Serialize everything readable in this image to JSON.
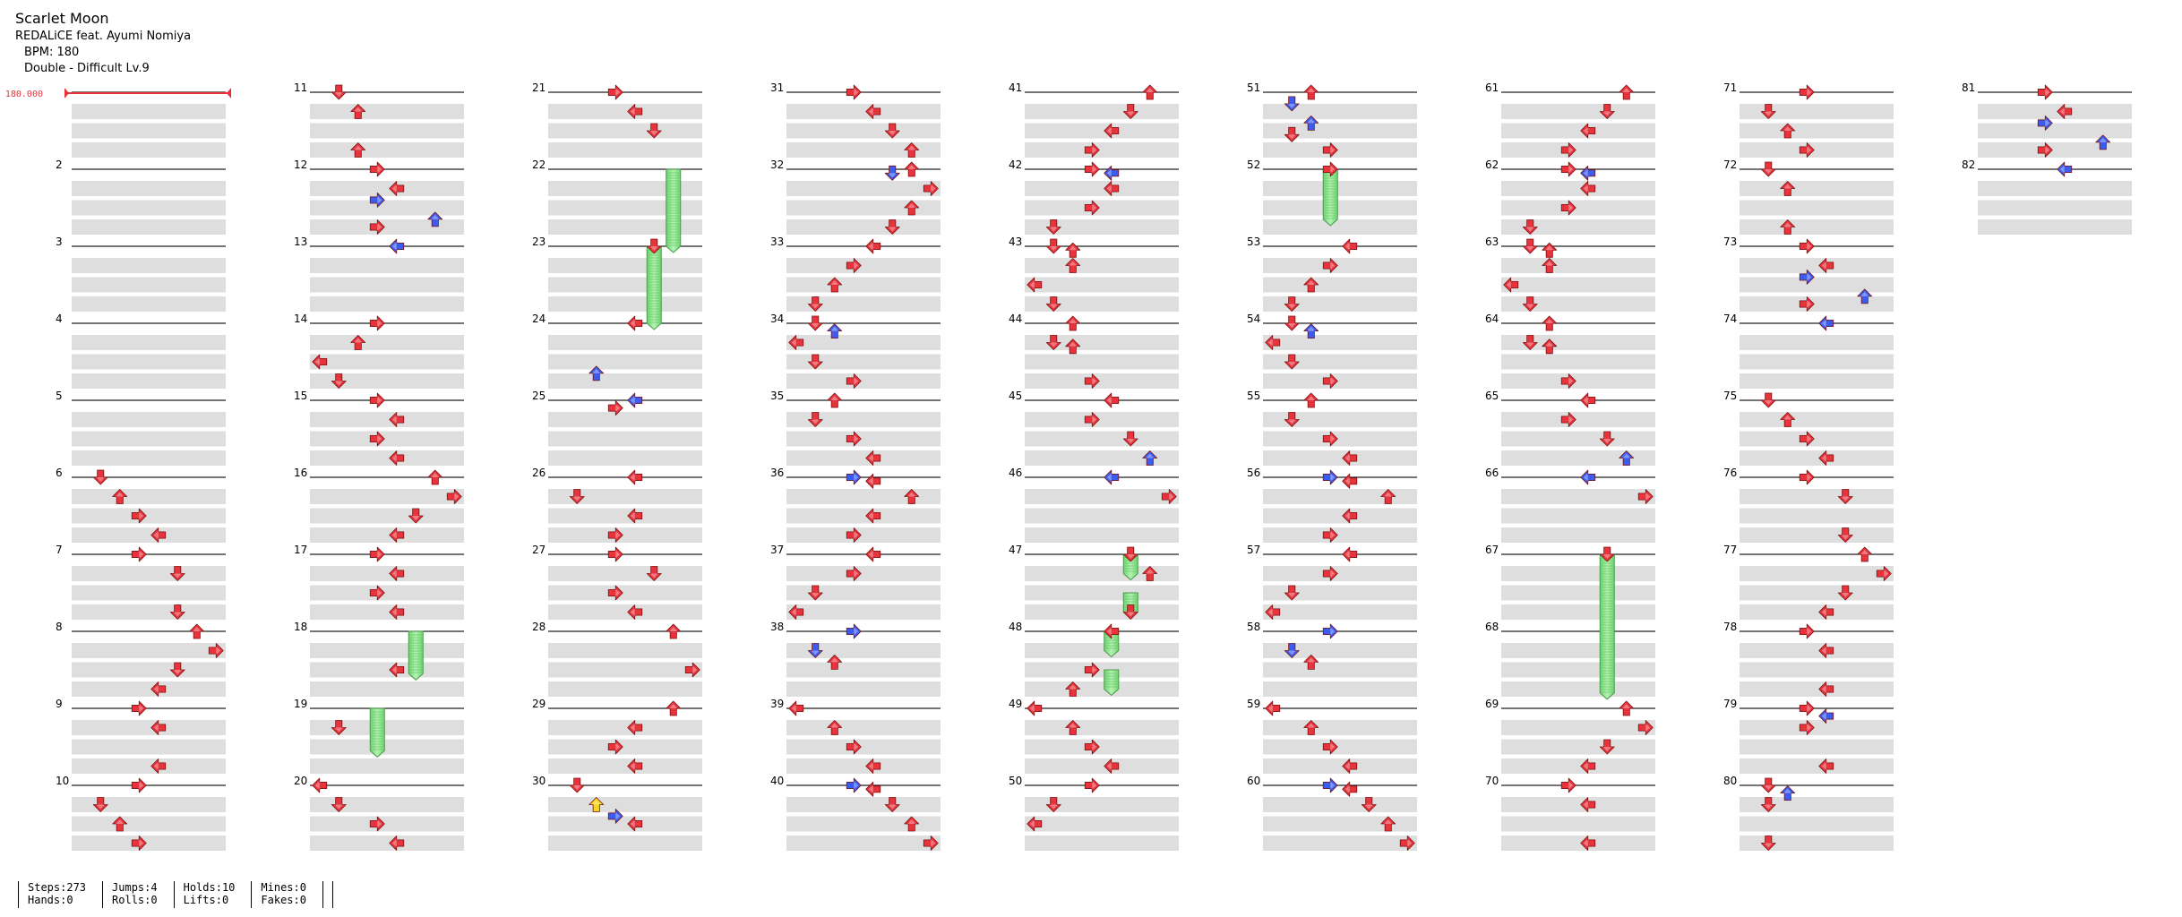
{
  "header": {
    "title": "Scarlet Moon",
    "artist": "REDALiCE feat. Ayumi Nomiya",
    "bpm_line": "BPM: 180",
    "difficulty_line": "Double - Difficult  Lv.9"
  },
  "bpm_marker": "180.000",
  "measure_numbers": [
    "",
    "2",
    "3",
    "4",
    "5",
    "6",
    "7",
    "8",
    "9",
    "10",
    "11",
    "12",
    "13",
    "14",
    "15",
    "16",
    "17",
    "18",
    "19",
    "20",
    "21",
    "22",
    "23",
    "24",
    "25",
    "26",
    "27",
    "28",
    "29",
    "30",
    "31",
    "32",
    "33",
    "34",
    "35",
    "36",
    "37",
    "38",
    "39",
    "40",
    "41",
    "42",
    "43",
    "44",
    "45",
    "46",
    "47",
    "48",
    "49",
    "50",
    "51",
    "52",
    "53",
    "54",
    "55",
    "56",
    "57",
    "58",
    "59",
    "60",
    "61",
    "62",
    "63",
    "64",
    "65",
    "66",
    "67",
    "68",
    "69",
    "70",
    "71",
    "72",
    "73",
    "74",
    "75",
    "76",
    "77",
    "78",
    "79",
    "80",
    "81",
    "82"
  ],
  "colors": {
    "arrow_red": "#e8323c",
    "arrow_blue": "#3a5cf0",
    "arrow_yellow": "#f5d623",
    "hold_green": "#8ee68e",
    "band_gray": "#dedede"
  },
  "notes": [
    [
      6,
      0.0,
      1,
      "r"
    ],
    [
      6,
      0.25,
      2,
      "r"
    ],
    [
      6,
      0.5,
      3,
      "r"
    ],
    [
      6,
      0.75,
      4,
      "r"
    ],
    [
      7,
      0.0,
      3,
      "r"
    ],
    [
      7,
      0.25,
      5,
      "r"
    ],
    [
      7,
      0.75,
      5,
      "r"
    ],
    [
      8,
      0.0,
      6,
      "r"
    ],
    [
      8,
      0.25,
      7,
      "r"
    ],
    [
      8,
      0.5,
      5,
      "r"
    ],
    [
      8,
      0.75,
      4,
      "r"
    ],
    [
      9,
      0.0,
      3,
      "r"
    ],
    [
      9,
      0.25,
      4,
      "r"
    ],
    [
      9,
      0.75,
      4,
      "r"
    ],
    [
      10,
      0.0,
      3,
      "r"
    ],
    [
      10,
      0.25,
      1,
      "r"
    ],
    [
      10,
      0.5,
      2,
      "r"
    ],
    [
      10,
      0.75,
      3,
      "r"
    ],
    [
      11,
      0.0,
      1,
      "r"
    ],
    [
      11,
      0.25,
      2,
      "r"
    ],
    [
      11,
      0.75,
      2,
      "r"
    ],
    [
      12,
      0.0,
      3,
      "r"
    ],
    [
      12,
      0.25,
      4,
      "r"
    ],
    [
      12,
      0.4,
      3,
      "b"
    ],
    [
      12,
      0.65,
      6,
      "b"
    ],
    [
      12,
      0.75,
      3,
      "r"
    ],
    [
      13,
      0.0,
      4,
      "b"
    ],
    [
      14,
      0.0,
      3,
      "r"
    ],
    [
      14,
      0.25,
      2,
      "r"
    ],
    [
      14,
      0.5,
      0,
      "r"
    ],
    [
      14,
      0.75,
      1,
      "r"
    ],
    [
      15,
      0.0,
      3,
      "r"
    ],
    [
      15,
      0.25,
      4,
      "r"
    ],
    [
      15,
      0.5,
      3,
      "r"
    ],
    [
      15,
      0.75,
      4,
      "r"
    ],
    [
      16,
      0.0,
      6,
      "r"
    ],
    [
      16,
      0.25,
      7,
      "r"
    ],
    [
      16,
      0.5,
      5,
      "r"
    ],
    [
      16,
      0.75,
      4,
      "r"
    ],
    [
      17,
      0.0,
      3,
      "r"
    ],
    [
      17,
      0.25,
      4,
      "r"
    ],
    [
      17,
      0.5,
      3,
      "r"
    ],
    [
      17,
      0.75,
      4,
      "r"
    ],
    [
      18,
      0.5,
      4,
      "r"
    ],
    [
      19,
      0.25,
      1,
      "r"
    ],
    [
      20,
      0.0,
      0,
      "r"
    ],
    [
      20,
      0.25,
      1,
      "r"
    ],
    [
      20,
      0.5,
      3,
      "r"
    ],
    [
      20,
      0.75,
      4,
      "r"
    ],
    [
      21,
      0.0,
      3,
      "r"
    ],
    [
      21,
      0.25,
      4,
      "r"
    ],
    [
      21,
      0.5,
      5,
      "r"
    ],
    [
      23,
      0.0,
      5,
      "r"
    ],
    [
      24,
      0.0,
      4,
      "r"
    ],
    [
      24,
      0.65,
      2,
      "b"
    ],
    [
      25,
      0.0,
      4,
      "b"
    ],
    [
      25,
      0.1,
      3,
      "r"
    ],
    [
      26,
      0.0,
      4,
      "r"
    ],
    [
      26,
      0.25,
      1,
      "r"
    ],
    [
      26,
      0.5,
      4,
      "r"
    ],
    [
      26,
      0.75,
      3,
      "r"
    ],
    [
      27,
      0.0,
      3,
      "r"
    ],
    [
      27,
      0.25,
      5,
      "r"
    ],
    [
      27,
      0.5,
      3,
      "r"
    ],
    [
      27,
      0.75,
      4,
      "r"
    ],
    [
      28,
      0.0,
      6,
      "r"
    ],
    [
      28,
      0.5,
      7,
      "r"
    ],
    [
      29,
      0.0,
      6,
      "r"
    ],
    [
      29,
      0.25,
      4,
      "r"
    ],
    [
      29,
      0.5,
      3,
      "r"
    ],
    [
      29,
      0.75,
      4,
      "r"
    ],
    [
      30,
      0.0,
      1,
      "r"
    ],
    [
      30,
      0.25,
      2,
      "y"
    ],
    [
      30,
      0.4,
      3,
      "b"
    ],
    [
      30,
      0.5,
      4,
      "r"
    ],
    [
      31,
      0.0,
      3,
      "r"
    ],
    [
      31,
      0.25,
      4,
      "r"
    ],
    [
      31,
      0.5,
      5,
      "r"
    ],
    [
      31,
      0.75,
      6,
      "r"
    ],
    [
      32,
      0.0,
      6,
      "r"
    ],
    [
      32,
      0.05,
      5,
      "b"
    ],
    [
      32,
      0.25,
      7,
      "r"
    ],
    [
      32,
      0.5,
      6,
      "r"
    ],
    [
      32,
      0.75,
      5,
      "r"
    ],
    [
      33,
      0.0,
      4,
      "r"
    ],
    [
      33,
      0.25,
      3,
      "r"
    ],
    [
      33,
      0.5,
      2,
      "r"
    ],
    [
      33,
      0.75,
      1,
      "r"
    ],
    [
      34,
      0.0,
      1,
      "r"
    ],
    [
      34,
      0.1,
      2,
      "b"
    ],
    [
      34,
      0.25,
      0,
      "r"
    ],
    [
      34,
      0.5,
      1,
      "r"
    ],
    [
      34,
      0.75,
      3,
      "r"
    ],
    [
      35,
      0.0,
      2,
      "r"
    ],
    [
      35,
      0.25,
      1,
      "r"
    ],
    [
      35,
      0.5,
      3,
      "r"
    ],
    [
      35,
      0.75,
      4,
      "r"
    ],
    [
      36,
      0.0,
      3,
      "b"
    ],
    [
      36,
      0.05,
      4,
      "r"
    ],
    [
      36,
      0.25,
      6,
      "r"
    ],
    [
      36,
      0.5,
      4,
      "r"
    ],
    [
      36,
      0.75,
      3,
      "r"
    ],
    [
      37,
      0.0,
      4,
      "r"
    ],
    [
      37,
      0.25,
      3,
      "r"
    ],
    [
      37,
      0.5,
      1,
      "r"
    ],
    [
      37,
      0.75,
      0,
      "r"
    ],
    [
      38,
      0.0,
      3,
      "b"
    ],
    [
      38,
      0.25,
      1,
      "b"
    ],
    [
      38,
      0.4,
      2,
      "r"
    ],
    [
      39,
      0.0,
      0,
      "r"
    ],
    [
      39,
      0.25,
      2,
      "r"
    ],
    [
      39,
      0.5,
      3,
      "r"
    ],
    [
      39,
      0.75,
      4,
      "r"
    ],
    [
      40,
      0.0,
      3,
      "b"
    ],
    [
      40,
      0.05,
      4,
      "r"
    ],
    [
      40,
      0.25,
      5,
      "r"
    ],
    [
      40,
      0.5,
      6,
      "r"
    ],
    [
      40,
      0.75,
      7,
      "r"
    ],
    [
      41,
      0.0,
      6,
      "r"
    ],
    [
      41,
      0.25,
      5,
      "r"
    ],
    [
      41,
      0.5,
      4,
      "r"
    ],
    [
      41,
      0.75,
      3,
      "r"
    ],
    [
      42,
      0.0,
      3,
      "r"
    ],
    [
      42,
      0.05,
      4,
      "b"
    ],
    [
      42,
      0.25,
      4,
      "r"
    ],
    [
      42,
      0.5,
      3,
      "r"
    ],
    [
      42,
      0.75,
      1,
      "r"
    ],
    [
      43,
      0.0,
      1,
      "r"
    ],
    [
      43,
      0.05,
      2,
      "r"
    ],
    [
      43,
      0.25,
      2,
      "r"
    ],
    [
      43,
      0.5,
      0,
      "r"
    ],
    [
      43,
      0.75,
      1,
      "r"
    ],
    [
      44,
      0.0,
      2,
      "r"
    ],
    [
      44,
      0.25,
      1,
      "r"
    ],
    [
      44,
      0.3,
      2,
      "r"
    ],
    [
      44,
      0.75,
      3,
      "r"
    ],
    [
      45,
      0.0,
      4,
      "r"
    ],
    [
      45,
      0.25,
      3,
      "r"
    ],
    [
      45,
      0.5,
      5,
      "r"
    ],
    [
      45,
      0.75,
      6,
      "b"
    ],
    [
      46,
      0.0,
      4,
      "b"
    ],
    [
      46,
      0.25,
      7,
      "r"
    ],
    [
      47,
      0.0,
      5,
      "r"
    ],
    [
      47,
      0.25,
      6,
      "r"
    ],
    [
      47,
      0.75,
      5,
      "r"
    ],
    [
      48,
      0.0,
      4,
      "r"
    ],
    [
      48,
      0.5,
      3,
      "r"
    ],
    [
      48,
      0.75,
      2,
      "r"
    ],
    [
      49,
      0.0,
      0,
      "r"
    ],
    [
      49,
      0.25,
      2,
      "r"
    ],
    [
      49,
      0.5,
      3,
      "r"
    ],
    [
      49,
      0.75,
      4,
      "r"
    ],
    [
      50,
      0.0,
      3,
      "r"
    ],
    [
      50,
      0.25,
      1,
      "r"
    ],
    [
      50,
      0.5,
      0,
      "r"
    ],
    [
      51,
      0.0,
      2,
      "r"
    ],
    [
      51,
      0.15,
      1,
      "b"
    ],
    [
      51,
      0.4,
      2,
      "b"
    ],
    [
      51,
      0.55,
      1,
      "r"
    ],
    [
      51,
      0.75,
      3,
      "r"
    ],
    [
      52,
      0.0,
      3,
      "r"
    ],
    [
      53,
      0.0,
      4,
      "r"
    ],
    [
      53,
      0.25,
      3,
      "r"
    ],
    [
      53,
      0.5,
      2,
      "r"
    ],
    [
      53,
      0.75,
      1,
      "r"
    ],
    [
      54,
      0.0,
      1,
      "r"
    ],
    [
      54,
      0.1,
      2,
      "b"
    ],
    [
      54,
      0.25,
      0,
      "r"
    ],
    [
      54,
      0.5,
      1,
      "r"
    ],
    [
      54,
      0.75,
      3,
      "r"
    ],
    [
      55,
      0.0,
      2,
      "r"
    ],
    [
      55,
      0.25,
      1,
      "r"
    ],
    [
      55,
      0.5,
      3,
      "r"
    ],
    [
      55,
      0.75,
      4,
      "r"
    ],
    [
      56,
      0.0,
      3,
      "b"
    ],
    [
      56,
      0.05,
      4,
      "r"
    ],
    [
      56,
      0.25,
      6,
      "r"
    ],
    [
      56,
      0.5,
      4,
      "r"
    ],
    [
      56,
      0.75,
      3,
      "r"
    ],
    [
      57,
      0.0,
      4,
      "r"
    ],
    [
      57,
      0.25,
      3,
      "r"
    ],
    [
      57,
      0.5,
      1,
      "r"
    ],
    [
      57,
      0.75,
      0,
      "r"
    ],
    [
      58,
      0.0,
      3,
      "b"
    ],
    [
      58,
      0.25,
      1,
      "b"
    ],
    [
      58,
      0.4,
      2,
      "r"
    ],
    [
      59,
      0.0,
      0,
      "r"
    ],
    [
      59,
      0.25,
      2,
      "r"
    ],
    [
      59,
      0.5,
      3,
      "r"
    ],
    [
      59,
      0.75,
      4,
      "r"
    ],
    [
      60,
      0.0,
      3,
      "b"
    ],
    [
      60,
      0.05,
      4,
      "r"
    ],
    [
      60,
      0.25,
      5,
      "r"
    ],
    [
      60,
      0.5,
      6,
      "r"
    ],
    [
      60,
      0.75,
      7,
      "r"
    ],
    [
      61,
      0.0,
      6,
      "r"
    ],
    [
      61,
      0.25,
      5,
      "r"
    ],
    [
      61,
      0.5,
      4,
      "r"
    ],
    [
      61,
      0.75,
      3,
      "r"
    ],
    [
      62,
      0.0,
      3,
      "r"
    ],
    [
      62,
      0.05,
      4,
      "b"
    ],
    [
      62,
      0.25,
      4,
      "r"
    ],
    [
      62,
      0.5,
      3,
      "r"
    ],
    [
      62,
      0.75,
      1,
      "r"
    ],
    [
      63,
      0.0,
      1,
      "r"
    ],
    [
      63,
      0.05,
      2,
      "r"
    ],
    [
      63,
      0.25,
      2,
      "r"
    ],
    [
      63,
      0.5,
      0,
      "r"
    ],
    [
      63,
      0.75,
      1,
      "r"
    ],
    [
      64,
      0.0,
      2,
      "r"
    ],
    [
      64,
      0.25,
      1,
      "r"
    ],
    [
      64,
      0.3,
      2,
      "r"
    ],
    [
      64,
      0.75,
      3,
      "r"
    ],
    [
      65,
      0.0,
      4,
      "r"
    ],
    [
      65,
      0.25,
      3,
      "r"
    ],
    [
      65,
      0.5,
      5,
      "r"
    ],
    [
      65,
      0.75,
      6,
      "b"
    ],
    [
      66,
      0.0,
      4,
      "b"
    ],
    [
      66,
      0.25,
      7,
      "r"
    ],
    [
      67,
      0.0,
      5,
      "r"
    ],
    [
      69,
      0.0,
      6,
      "r"
    ],
    [
      69,
      0.25,
      7,
      "r"
    ],
    [
      69,
      0.5,
      5,
      "r"
    ],
    [
      69,
      0.75,
      4,
      "r"
    ],
    [
      70,
      0.0,
      3,
      "r"
    ],
    [
      70,
      0.25,
      4,
      "r"
    ],
    [
      70,
      0.75,
      4,
      "r"
    ],
    [
      71,
      0.0,
      3,
      "r"
    ],
    [
      71,
      0.25,
      1,
      "r"
    ],
    [
      71,
      0.5,
      2,
      "r"
    ],
    [
      71,
      0.75,
      3,
      "r"
    ],
    [
      72,
      0.0,
      1,
      "r"
    ],
    [
      72,
      0.25,
      2,
      "r"
    ],
    [
      72,
      0.75,
      2,
      "r"
    ],
    [
      73,
      0.0,
      3,
      "r"
    ],
    [
      73,
      0.25,
      4,
      "r"
    ],
    [
      73,
      0.4,
      3,
      "b"
    ],
    [
      73,
      0.65,
      6,
      "b"
    ],
    [
      73,
      0.75,
      3,
      "r"
    ],
    [
      74,
      0.0,
      4,
      "b"
    ],
    [
      75,
      0.0,
      1,
      "r"
    ],
    [
      75,
      0.25,
      2,
      "r"
    ],
    [
      75,
      0.5,
      3,
      "r"
    ],
    [
      75,
      0.75,
      4,
      "r"
    ],
    [
      76,
      0.0,
      3,
      "r"
    ],
    [
      76,
      0.25,
      5,
      "r"
    ],
    [
      76,
      0.75,
      5,
      "r"
    ],
    [
      77,
      0.0,
      6,
      "r"
    ],
    [
      77,
      0.25,
      7,
      "r"
    ],
    [
      77,
      0.5,
      5,
      "r"
    ],
    [
      77,
      0.75,
      4,
      "r"
    ],
    [
      78,
      0.0,
      3,
      "r"
    ],
    [
      78,
      0.25,
      4,
      "r"
    ],
    [
      78,
      0.75,
      4,
      "r"
    ],
    [
      79,
      0.0,
      3,
      "r"
    ],
    [
      79,
      0.1,
      4,
      "b"
    ],
    [
      79,
      0.25,
      3,
      "r"
    ],
    [
      79,
      0.75,
      4,
      "r"
    ],
    [
      80,
      0.0,
      1,
      "r"
    ],
    [
      80,
      0.1,
      2,
      "b"
    ],
    [
      80,
      0.25,
      1,
      "r"
    ],
    [
      80,
      0.75,
      1,
      "r"
    ],
    [
      81,
      0.0,
      3,
      "r"
    ],
    [
      81,
      0.25,
      4,
      "r"
    ],
    [
      81,
      0.4,
      3,
      "b"
    ],
    [
      81,
      0.65,
      6,
      "b"
    ],
    [
      81,
      0.75,
      3,
      "r"
    ],
    [
      82,
      0.0,
      4,
      "b"
    ]
  ],
  "holds": [
    [
      22,
      0.0,
      6,
      23,
      0.0
    ],
    [
      23,
      0.0,
      5,
      24,
      0.0
    ],
    [
      18,
      0.0,
      5,
      18,
      0.55
    ],
    [
      19,
      0.0,
      3,
      19,
      0.55
    ],
    [
      47,
      0.0,
      5,
      47,
      0.25
    ],
    [
      47,
      0.5,
      5,
      47,
      0.75
    ],
    [
      48,
      0.0,
      4,
      48,
      0.25
    ],
    [
      48,
      0.5,
      4,
      48,
      0.75
    ],
    [
      52,
      0.0,
      3,
      52,
      0.65
    ],
    [
      67,
      0.0,
      5,
      68,
      0.8
    ]
  ],
  "stats": {
    "steps": "Steps:273",
    "hands": "Hands:0",
    "jumps": "Jumps:4",
    "rolls": "Rolls:0",
    "holds": "Holds:10",
    "lifts": "Lifts:0",
    "mines": "Mines:0",
    "fakes": "Fakes:0"
  }
}
